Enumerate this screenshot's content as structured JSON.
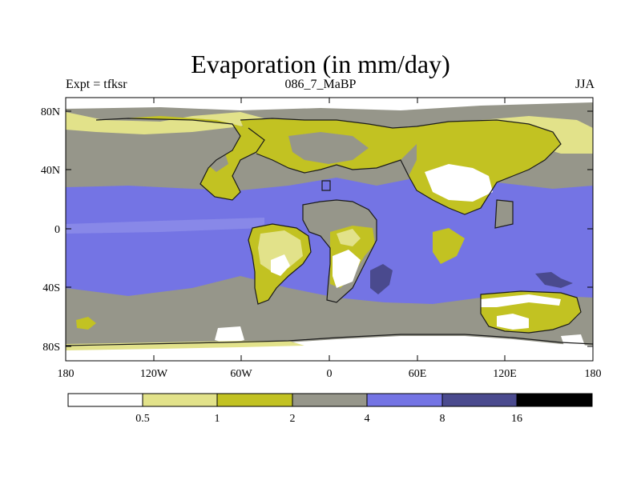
{
  "title": "Evaporation (in mm/day)",
  "subtitle": {
    "left": "Expt = tfksr",
    "center": "086_7_MaBP",
    "right": "JJA"
  },
  "axes": {
    "lat_ticks": [
      "80N",
      "40N",
      "0",
      "40S",
      "80S"
    ],
    "lon_ticks": [
      "180",
      "120W",
      "60W",
      "0",
      "60E",
      "120E",
      "180"
    ],
    "lon_range": [
      -180,
      180
    ],
    "lat_range": [
      -90,
      90
    ]
  },
  "legend": {
    "labels": [
      "0.5",
      "1",
      "2",
      "4",
      "8",
      "16"
    ],
    "colors": [
      "#ffffff",
      "#e2e28a",
      "#c2c222",
      "#96968a",
      "#7474e4",
      "#4a4a8e",
      "#000000"
    ]
  }
}
